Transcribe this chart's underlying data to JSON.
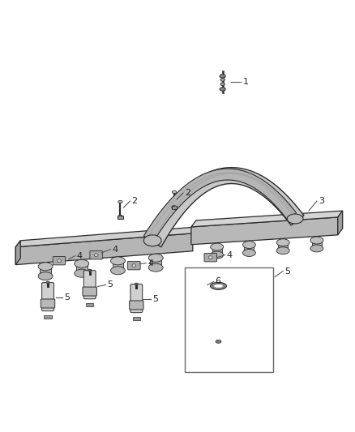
{
  "bg_color": "#ffffff",
  "dc": "#2a2a2a",
  "mc": "#888888",
  "lc": "#aaaaaa",
  "rail_fc": "#c0c0c0",
  "rail_ec": "#333333",
  "tube_fc": "#b8b8b8",
  "callout_color": "#222222",
  "leader_color": "#555555",
  "figsize": [
    4.38,
    5.33
  ],
  "dpi": 100
}
